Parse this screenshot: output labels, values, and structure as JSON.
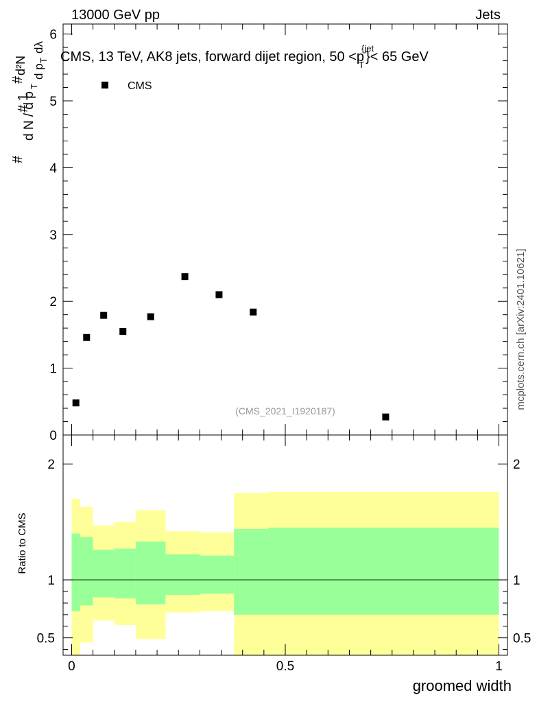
{
  "header": {
    "left": "13000 GeV pp",
    "right": "Jets"
  },
  "watermark": "mcplots.cern.ch [arXiv:2401.10621]",
  "chart_data": [
    {
      "type": "scatter",
      "title": "CMS, 13 TeV, AK8 jets, forward dijet region, 50 <p",
      "title_sup": "{jet",
      "title_sub": "T",
      "title_tail": "}< 65 GeV",
      "ylabel": "1 / (dN/dp_T) · d²N / (dp_T dλ)",
      "analysis_id": "(CMS_2021_I1920187)",
      "legend": {
        "position": "top-left",
        "entries": [
          "CMS"
        ]
      },
      "ylim": [
        0,
        6.15
      ],
      "xlim": [
        -0.02,
        1.02
      ],
      "yticks": [
        "0",
        "1",
        "2",
        "3",
        "4",
        "5",
        "6"
      ],
      "series": [
        {
          "name": "CMS",
          "x": [
            0.01,
            0.035,
            0.075,
            0.12,
            0.185,
            0.265,
            0.345,
            0.425,
            0.735
          ],
          "y": [
            0.48,
            1.46,
            1.79,
            1.55,
            1.77,
            2.37,
            2.1,
            1.84,
            0.27
          ]
        }
      ]
    },
    {
      "type": "area",
      "ylabel": "Ratio to CMS",
      "xlabel": "groomed width",
      "ylim": [
        0.35,
        2.25
      ],
      "xlim": [
        -0.02,
        1.02
      ],
      "xticks": [
        "0",
        "0.5",
        "1"
      ],
      "yticks": [
        "0.5",
        "1",
        "2"
      ],
      "reference_line": 1,
      "bands": {
        "edges": [
          0,
          0.02,
          0.05,
          0.1,
          0.15,
          0.22,
          0.3,
          0.38,
          0.46,
          1.0
        ],
        "inner_lo": [
          0.73,
          0.78,
          0.85,
          0.84,
          0.79,
          0.87,
          0.88,
          0.7,
          0.7
        ],
        "inner_hi": [
          1.4,
          1.37,
          1.26,
          1.27,
          1.33,
          1.22,
          1.21,
          1.44,
          1.45
        ],
        "outer_lo": [
          0.35,
          0.46,
          0.65,
          0.61,
          0.49,
          0.72,
          0.73,
          0.35,
          0.35
        ],
        "outer_hi": [
          1.7,
          1.63,
          1.47,
          1.5,
          1.6,
          1.42,
          1.41,
          1.75,
          1.76
        ],
        "inner_color": "#99ff99",
        "outer_color": "#ffff99"
      }
    }
  ]
}
